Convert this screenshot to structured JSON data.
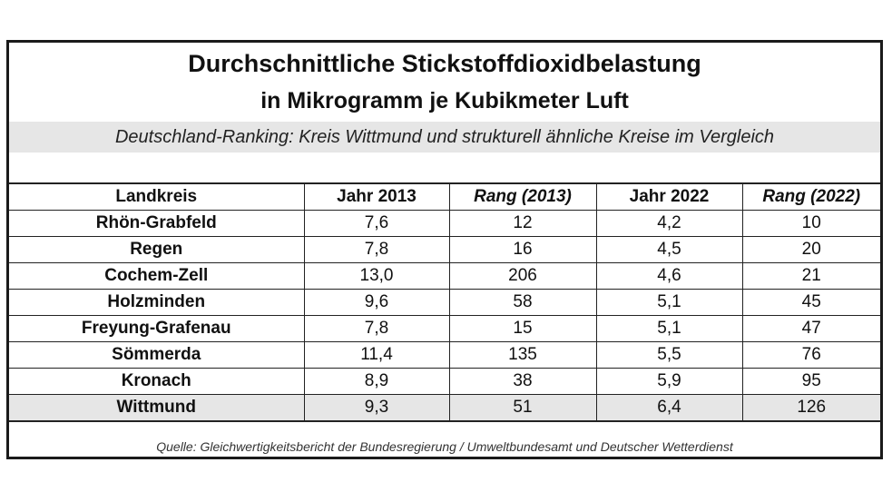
{
  "title_line1": "Durchschnittliche Stickstoffdioxidbelastung",
  "title_line2": "in Mikrogramm je Kubikmeter Luft",
  "subtitle": "Deutschland-Ranking: Kreis Wittmund und strukturell ähnliche Kreise im Vergleich",
  "columns": [
    "Landkreis",
    "Jahr 2013",
    "Rang (2013)",
    "Jahr 2022",
    "Rang (2022)"
  ],
  "rows": [
    [
      "Rhön-Grabfeld",
      "7,6",
      "12",
      "4,2",
      "10"
    ],
    [
      "Regen",
      "7,8",
      "16",
      "4,5",
      "20"
    ],
    [
      "Cochem-Zell",
      "13,0",
      "206",
      "4,6",
      "21"
    ],
    [
      "Holzminden",
      "9,6",
      "58",
      "5,1",
      "45"
    ],
    [
      "Freyung-Grafenau",
      "7,8",
      "15",
      "5,1",
      "47"
    ],
    [
      "Sömmerda",
      "11,4",
      "135",
      "5,5",
      "76"
    ],
    [
      "Kronach",
      "8,9",
      "38",
      "5,9",
      "95"
    ],
    [
      "Wittmund",
      "9,3",
      "51",
      "6,4",
      "126"
    ]
  ],
  "highlight_color": "#e6e6e6",
  "source": "Quelle: Gleichwertigkeitsbericht der Bundesregierung / Umweltbundesamt und Deutscher Wetterdienst"
}
